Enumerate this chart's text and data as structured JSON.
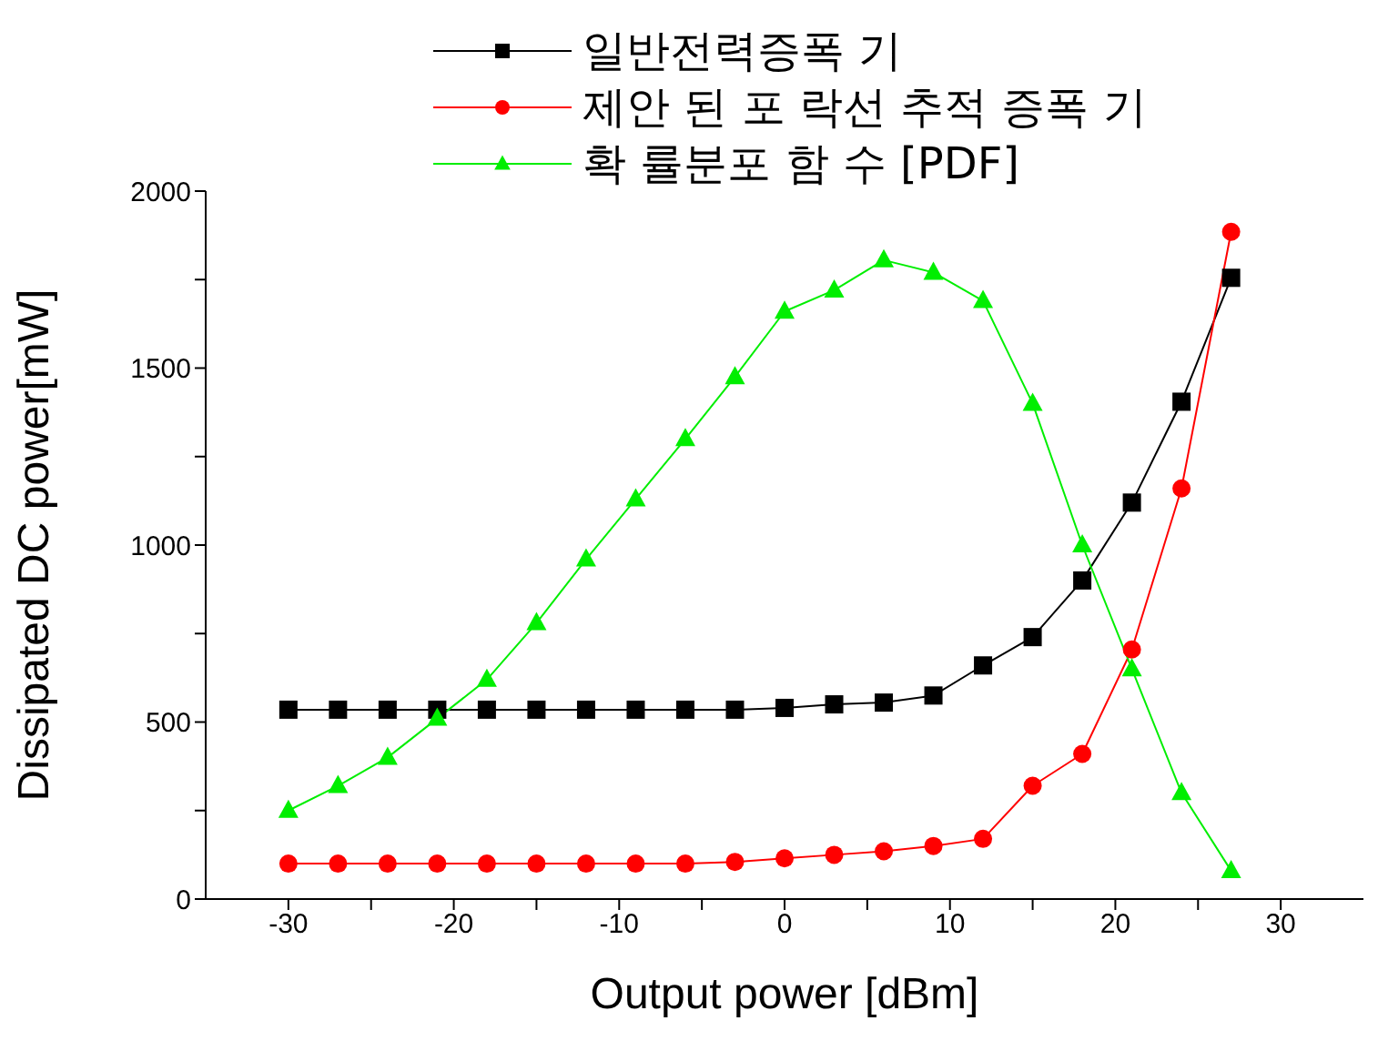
{
  "chart_data": {
    "type": "line",
    "xlabel": "Output power [dBm]",
    "ylabel": "Dissipated DC power[mW]",
    "x": [
      -30,
      -27,
      -24,
      -21,
      -18,
      -15,
      -12,
      -9,
      -6,
      -3,
      0,
      3,
      6,
      9,
      12,
      15,
      18,
      21,
      24,
      27
    ],
    "series": [
      {
        "name": "일반전력증폭 기",
        "color": "#000000",
        "marker": "square",
        "values": [
          535,
          535,
          535,
          535,
          535,
          535,
          535,
          535,
          535,
          535,
          540,
          550,
          555,
          575,
          660,
          740,
          900,
          1120,
          1405,
          1755
        ]
      },
      {
        "name": "제안 된 포 락선 추적 증폭 기",
        "color": "#ff0000",
        "marker": "circle",
        "values": [
          100,
          100,
          100,
          100,
          100,
          100,
          100,
          100,
          100,
          105,
          115,
          125,
          135,
          150,
          170,
          320,
          410,
          705,
          1160,
          1885
        ]
      },
      {
        "name": "확 률분포 함 수 [PDF]",
        "color": "#00ee00",
        "marker": "triangle",
        "values": [
          250,
          320,
          400,
          510,
          620,
          780,
          960,
          1130,
          1300,
          1475,
          1660,
          1720,
          1805,
          1770,
          1690,
          1400,
          1000,
          650,
          300,
          80
        ]
      }
    ],
    "xlim": [
      -35,
      35
    ],
    "xticks": [
      -30,
      {
        "value": -25,
        "label": null
      },
      -20,
      {
        "value": -15,
        "label": null
      },
      -10,
      {
        "value": -5,
        "label": null
      },
      0,
      {
        "value": 5,
        "label": null
      },
      10,
      {
        "value": 15,
        "label": null
      },
      20,
      {
        "value": 25,
        "label": null
      },
      30
    ],
    "ylim": [
      0,
      2000
    ],
    "yticks": [
      0,
      {
        "value": 250,
        "label": null
      },
      500,
      {
        "value": 750,
        "label": null
      },
      1000,
      {
        "value": 1250,
        "label": null
      },
      1500,
      {
        "value": 1750,
        "label": null
      },
      2000
    ],
    "grid": false,
    "legend": "top"
  }
}
